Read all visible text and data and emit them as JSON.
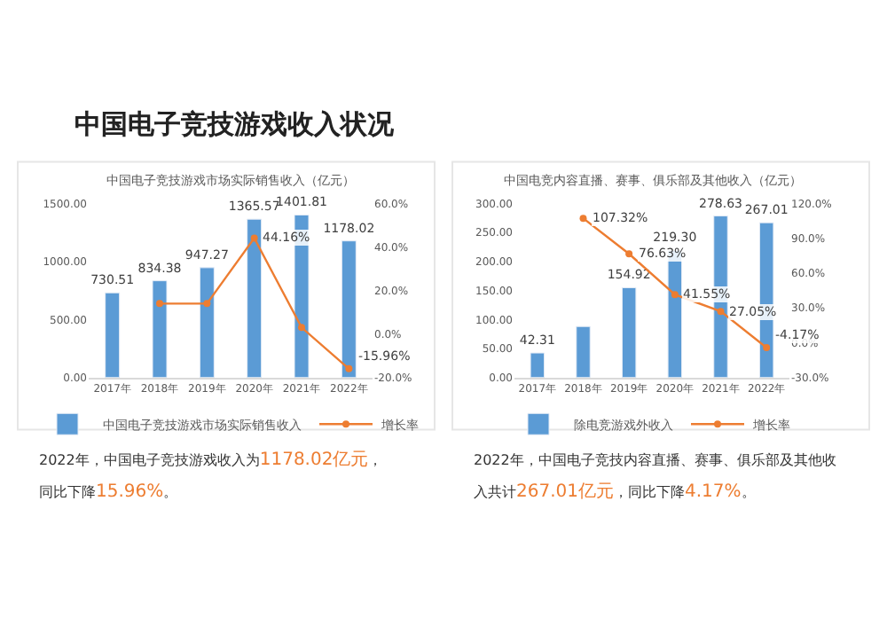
{
  "chart_data": [
    {
      "type": "bar",
      "title": "中国电子竞技游戏收入状况",
      "subtitle": "中国电子竞技游戏市场实际销售收入（亿元）",
      "categories": [
        "2017年",
        "2018年",
        "2019年",
        "2020年",
        "2021年",
        "2022年"
      ],
      "series": [
        {
          "name": "中国电子竞技游戏市场实际销售收入",
          "color": "#5b9bd5",
          "values": [
            730.51,
            834.38,
            947.27,
            1365.57,
            1401.81,
            1178.02
          ],
          "value_labels": [
            "730.51",
            "834.38",
            "947.27",
            "1365.57",
            "1401.81",
            "1178.02"
          ]
        },
        {
          "name": "增长率",
          "type": "line",
          "axis": "y2",
          "color": "#ed7d31",
          "marker": "circle",
          "values": [
            null,
            14,
            14,
            44.16,
            3,
            -15.96
          ],
          "value_labels": [
            null,
            null,
            null,
            "44.16%",
            null,
            "-15.96%"
          ]
        }
      ],
      "ylim": [
        0,
        1500
      ],
      "yticks": [
        {
          "value": 0,
          "label": "0.00"
        },
        {
          "value": 500,
          "label": "500.00"
        },
        {
          "value": 1000,
          "label": "1000.00"
        },
        {
          "value": 1500,
          "label": "1500.00"
        }
      ],
      "y2lim": [
        -20,
        60
      ],
      "y2ticks": [
        {
          "value": -20,
          "label": "-20.0%"
        },
        {
          "value": 0,
          "label": "0.0%"
        },
        {
          "value": 20,
          "label": "20.0%"
        },
        {
          "value": 40,
          "label": "40.0%"
        },
        {
          "value": 60,
          "label": "60.0%"
        }
      ],
      "legend": "bottom",
      "annotations": [
        "2022年，中国电子竞技游戏收入为1178.02亿元，",
        "同比下降15.96%。"
      ]
    },
    {
      "type": "bar",
      "subtitle": "中国电竞内容直播、赛事、俱乐部及其他收入（亿元）",
      "categories": [
        "2017年",
        "2018年",
        "2019年",
        "2020年",
        "2021年",
        "2022年"
      ],
      "series": [
        {
          "name": "除电竞游戏外收入",
          "color": "#5b9bd5",
          "values": [
            42.31,
            88,
            154.92,
            219.3,
            278.63,
            267.01
          ],
          "value_labels": [
            "42.31",
            null,
            "154.92",
            "219.30",
            "278.63",
            "267.01"
          ]
        },
        {
          "name": "增长率",
          "type": "line",
          "axis": "y2",
          "color": "#ed7d31",
          "marker": "circle",
          "values": [
            null,
            107.32,
            76.63,
            41.55,
            27.05,
            -4.17
          ],
          "value_labels": [
            null,
            "107.32%",
            "76.63%",
            "41.55%",
            "27.05%",
            "-4.17%"
          ]
        }
      ],
      "ylim": [
        0,
        300
      ],
      "yticks": [
        {
          "value": 0,
          "label": "0.00"
        },
        {
          "value": 50,
          "label": "50.00"
        },
        {
          "value": 100,
          "label": "100.00"
        },
        {
          "value": 150,
          "label": "150.00"
        },
        {
          "value": 200,
          "label": "200.00"
        },
        {
          "value": 250,
          "label": "250.00"
        },
        {
          "value": 300,
          "label": "300.00"
        }
      ],
      "y2lim": [
        -30,
        120
      ],
      "y2ticks": [
        {
          "value": -30,
          "label": "-30.0%"
        },
        {
          "value": 0,
          "label": "0.0%"
        },
        {
          "value": 30,
          "label": "30.0%"
        },
        {
          "value": 60,
          "label": "60.0%"
        },
        {
          "value": 90,
          "label": "90.0%"
        },
        {
          "value": 120,
          "label": "120.0%"
        }
      ],
      "legend": "bottom",
      "annotations": [
        "2022年，中国电子竞技内容直播、赛事、俱乐部及其他收",
        "入共计267.01亿元，同比下降4.17%。"
      ]
    }
  ]
}
